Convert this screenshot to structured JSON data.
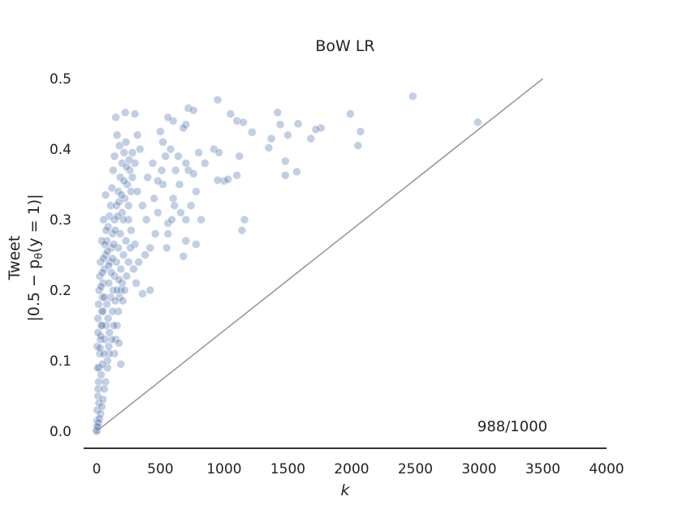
{
  "chart_data": {
    "type": "scatter",
    "title": "BoW LR",
    "xlabel": "k",
    "ylabel_line1": "Tweet",
    "ylabel_line2": "|0.5 − p",
    "ylabel_sub": "θ",
    "ylabel_line2_end": "(y = 1)|",
    "annotation": "988/1000",
    "xlim": [
      -100,
      4000
    ],
    "ylim": [
      -0.025,
      0.52
    ],
    "x_ticks": [
      0,
      500,
      1000,
      1500,
      2000,
      2500,
      3000,
      3500,
      4000
    ],
    "x_tick_labels": [
      "0",
      "500",
      "1000",
      "1500",
      "2000",
      "2500",
      "3000",
      "3500",
      "4000"
    ],
    "y_ticks": [
      0.0,
      0.1,
      0.2,
      0.3,
      0.4,
      0.5
    ],
    "y_tick_labels": [
      "0.0",
      "0.1",
      "0.2",
      "0.3",
      "0.4",
      "0.5"
    ],
    "reference_line": {
      "x": [
        0,
        3500
      ],
      "y": [
        0,
        0.5
      ]
    },
    "grid": false,
    "colors": {
      "points": "#4c72b0",
      "line": "#999999",
      "axis": "#333333"
    },
    "series": [
      {
        "points": [
          [
            2480,
            0.475
          ],
          [
            2990,
            0.438
          ],
          [
            1990,
            0.45
          ],
          [
            2070,
            0.425
          ],
          [
            2050,
            0.405
          ],
          [
            950,
            0.47
          ],
          [
            720,
            0.458
          ],
          [
            760,
            0.455
          ],
          [
            225,
            0.452
          ],
          [
            1050,
            0.45
          ],
          [
            1420,
            0.452
          ],
          [
            1100,
            0.44
          ],
          [
            1150,
            0.438
          ],
          [
            1580,
            0.436
          ],
          [
            1760,
            0.43
          ],
          [
            1720,
            0.428
          ],
          [
            1440,
            0.435
          ],
          [
            1500,
            0.42
          ],
          [
            1680,
            0.415
          ],
          [
            1370,
            0.415
          ],
          [
            1350,
            0.402
          ],
          [
            1220,
            0.424
          ],
          [
            1480,
            0.383
          ],
          [
            1570,
            0.368
          ],
          [
            1480,
            0.363
          ],
          [
            920,
            0.4
          ],
          [
            960,
            0.395
          ],
          [
            1000,
            0.355
          ],
          [
            950,
            0.356
          ],
          [
            1030,
            0.357
          ],
          [
            1100,
            0.363
          ],
          [
            1120,
            0.39
          ],
          [
            1160,
            0.3
          ],
          [
            1140,
            0.285
          ],
          [
            700,
            0.435
          ],
          [
            680,
            0.43
          ],
          [
            600,
            0.44
          ],
          [
            560,
            0.445
          ],
          [
            500,
            0.425
          ],
          [
            520,
            0.41
          ],
          [
            640,
            0.39
          ],
          [
            700,
            0.38
          ],
          [
            720,
            0.37
          ],
          [
            760,
            0.365
          ],
          [
            800,
            0.395
          ],
          [
            850,
            0.38
          ],
          [
            780,
            0.34
          ],
          [
            740,
            0.32
          ],
          [
            700,
            0.3
          ],
          [
            660,
            0.31
          ],
          [
            600,
            0.33
          ],
          [
            560,
            0.295
          ],
          [
            520,
            0.35
          ],
          [
            480,
            0.31
          ],
          [
            440,
            0.38
          ],
          [
            400,
            0.36
          ],
          [
            460,
            0.28
          ],
          [
            420,
            0.26
          ],
          [
            380,
            0.25
          ],
          [
            700,
            0.27
          ],
          [
            680,
            0.248
          ],
          [
            780,
            0.265
          ],
          [
            820,
            0.3
          ],
          [
            560,
            0.28
          ],
          [
            300,
            0.45
          ],
          [
            320,
            0.42
          ],
          [
            340,
            0.4
          ],
          [
            280,
            0.395
          ],
          [
            260,
            0.37
          ],
          [
            240,
            0.35
          ],
          [
            220,
            0.33
          ],
          [
            200,
            0.31
          ],
          [
            360,
            0.32
          ],
          [
            390,
            0.3
          ],
          [
            420,
            0.2
          ],
          [
            360,
            0.195
          ],
          [
            310,
            0.21
          ],
          [
            290,
            0.23
          ],
          [
            330,
            0.24
          ],
          [
            300,
            0.265
          ],
          [
            270,
            0.285
          ],
          [
            250,
            0.3
          ],
          [
            230,
            0.27
          ],
          [
            210,
            0.25
          ],
          [
            190,
            0.23
          ],
          [
            200,
            0.21
          ],
          [
            180,
            0.19
          ],
          [
            170,
            0.17
          ],
          [
            160,
            0.15
          ],
          [
            150,
            0.13
          ],
          [
            140,
            0.11
          ],
          [
            190,
            0.095
          ],
          [
            175,
            0.125
          ],
          [
            150,
            0.445
          ],
          [
            160,
            0.42
          ],
          [
            180,
            0.405
          ],
          [
            140,
            0.39
          ],
          [
            130,
            0.37
          ],
          [
            120,
            0.345
          ],
          [
            110,
            0.32
          ],
          [
            100,
            0.305
          ],
          [
            90,
            0.29
          ],
          [
            80,
            0.27
          ],
          [
            70,
            0.25
          ],
          [
            60,
            0.23
          ],
          [
            50,
            0.21
          ],
          [
            45,
            0.19
          ],
          [
            40,
            0.17
          ],
          [
            35,
            0.15
          ],
          [
            30,
            0.13
          ],
          [
            25,
            0.11
          ],
          [
            20,
            0.09
          ],
          [
            15,
            0.07
          ],
          [
            10,
            0.05
          ],
          [
            5,
            0.03
          ],
          [
            3,
            0.015
          ],
          [
            2,
            0.008
          ],
          [
            1,
            0.002
          ],
          [
            0,
            0.0
          ],
          [
            70,
            0.335
          ],
          [
            55,
            0.3
          ],
          [
            40,
            0.27
          ],
          [
            30,
            0.24
          ],
          [
            20,
            0.2
          ],
          [
            10,
            0.16
          ],
          [
            5,
            0.12
          ],
          [
            8,
            0.09
          ],
          [
            12,
            0.06
          ],
          [
            18,
            0.04
          ],
          [
            95,
            0.21
          ],
          [
            110,
            0.19
          ],
          [
            125,
            0.17
          ],
          [
            135,
            0.15
          ],
          [
            120,
            0.13
          ],
          [
            100,
            0.11
          ],
          [
            85,
            0.09
          ],
          [
            70,
            0.07
          ],
          [
            60,
            0.06
          ],
          [
            50,
            0.045
          ],
          [
            40,
            0.035
          ],
          [
            30,
            0.025
          ],
          [
            22,
            0.018
          ],
          [
            15,
            0.012
          ],
          [
            8,
            0.006
          ],
          [
            105,
            0.24
          ],
          [
            115,
            0.26
          ],
          [
            125,
            0.28
          ],
          [
            140,
            0.3
          ],
          [
            155,
            0.32
          ],
          [
            170,
            0.34
          ],
          [
            185,
            0.36
          ],
          [
            200,
            0.38
          ],
          [
            215,
            0.395
          ],
          [
            230,
            0.41
          ],
          [
            80,
            0.18
          ],
          [
            90,
            0.16
          ],
          [
            100,
            0.14
          ],
          [
            95,
            0.12
          ],
          [
            85,
            0.1
          ],
          [
            75,
            0.15
          ],
          [
            65,
            0.13
          ],
          [
            55,
            0.11
          ],
          [
            45,
            0.095
          ],
          [
            35,
            0.08
          ],
          [
            60,
            0.19
          ],
          [
            50,
            0.17
          ],
          [
            42,
            0.15
          ],
          [
            33,
            0.135
          ],
          [
            26,
            0.118
          ],
          [
            140,
            0.22
          ],
          [
            155,
            0.24
          ],
          [
            170,
            0.26
          ],
          [
            185,
            0.28
          ],
          [
            210,
            0.3
          ],
          [
            250,
            0.32
          ],
          [
            270,
            0.34
          ],
          [
            280,
            0.36
          ],
          [
            300,
            0.38
          ],
          [
            320,
            0.34
          ],
          [
            450,
            0.33
          ],
          [
            480,
            0.355
          ],
          [
            510,
            0.37
          ],
          [
            540,
            0.39
          ],
          [
            580,
            0.4
          ],
          [
            620,
            0.37
          ],
          [
            650,
            0.35
          ],
          [
            610,
            0.32
          ],
          [
            590,
            0.3
          ],
          [
            550,
            0.26
          ],
          [
            130,
            0.2
          ],
          [
            145,
            0.185
          ],
          [
            160,
            0.2
          ],
          [
            175,
            0.215
          ],
          [
            190,
            0.2
          ],
          [
            205,
            0.185
          ],
          [
            220,
            0.2
          ],
          [
            235,
            0.22
          ],
          [
            250,
            0.24
          ],
          [
            265,
            0.26
          ],
          [
            10,
            0.14
          ],
          [
            15,
            0.18
          ],
          [
            25,
            0.22
          ],
          [
            35,
            0.205
          ],
          [
            45,
            0.225
          ],
          [
            55,
            0.245
          ],
          [
            65,
            0.265
          ],
          [
            75,
            0.285
          ],
          [
            85,
            0.255
          ],
          [
            95,
            0.235
          ],
          [
            115,
            0.225
          ],
          [
            125,
            0.245
          ],
          [
            135,
            0.265
          ],
          [
            145,
            0.285
          ],
          [
            165,
            0.305
          ],
          [
            175,
            0.325
          ],
          [
            195,
            0.335
          ],
          [
            215,
            0.355
          ],
          [
            235,
            0.375
          ],
          [
            255,
            0.385
          ]
        ]
      }
    ]
  }
}
